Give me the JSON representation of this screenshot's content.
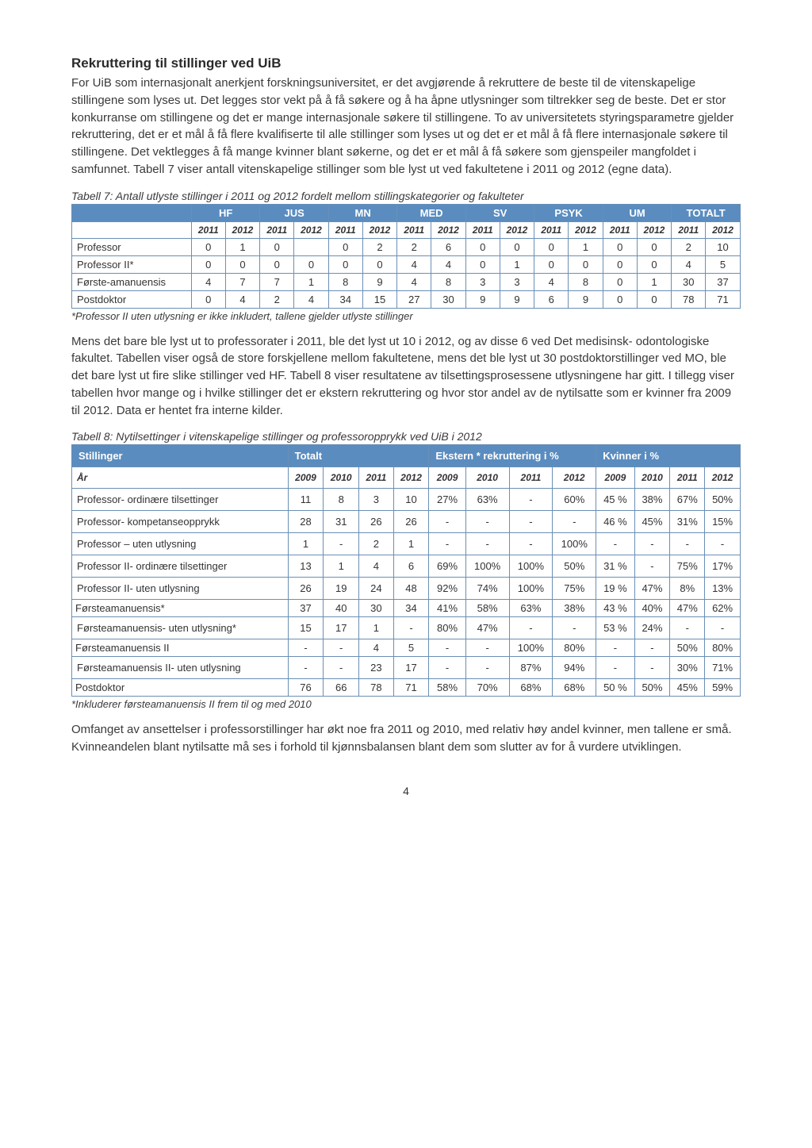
{
  "heading": "Rekruttering til stillinger ved UiB",
  "para1": "For UiB som internasjonalt anerkjent forskningsuniversitet, er det avgjørende å rekruttere de beste til de vitenskapelige stillingene som lyses ut. Det legges stor vekt på å få søkere og å ha åpne utlysninger som tiltrekker seg de beste. Det er stor konkurranse om stillingene og det er mange internasjonale søkere til stillingene. To av universitetets styringsparametre gjelder rekruttering, det er et mål å få flere kvalifiserte til alle stillinger som lyses ut og det er et mål å få flere internasjonale søkere til stillingene. Det vektlegges å få mange kvinner blant søkerne, og det er et mål å få søkere som gjenspeiler mangfoldet i samfunnet. Tabell 7 viser antall vitenskapelige stillinger som ble lyst ut ved fakultetene i 2011 og 2012 (egne data).",
  "table7": {
    "caption": "Tabell 7: Antall utlyste stillinger i 2011 og 2012 fordelt mellom stillingskategorier og fakulteter",
    "groups": [
      "",
      "HF",
      "JUS",
      "MN",
      "MED",
      "SV",
      "PSYK",
      "UM",
      "TOTALT"
    ],
    "years": [
      "2011",
      "2012",
      "2011",
      "2012",
      "2011",
      "2012",
      "2011",
      "2012",
      "2011",
      "2012",
      "2011",
      "2012",
      "2011",
      "2012",
      "2011",
      "2012"
    ],
    "rows": [
      {
        "label": "Professor",
        "vals": [
          "0",
          "1",
          "0",
          "",
          "0",
          "2",
          "2",
          "6",
          "0",
          "0",
          "0",
          "1",
          "0",
          "0",
          "2",
          "10"
        ]
      },
      {
        "label": "Professor II*",
        "vals": [
          "0",
          "0",
          "0",
          "0",
          "0",
          "0",
          "4",
          "4",
          "0",
          "1",
          "0",
          "0",
          "0",
          "0",
          "4",
          "5"
        ]
      },
      {
        "label": "Første-amanuensis",
        "vals": [
          "4",
          "7",
          "7",
          "1",
          "8",
          "9",
          "4",
          "8",
          "3",
          "3",
          "4",
          "8",
          "0",
          "1",
          "30",
          "37"
        ]
      },
      {
        "label": "Postdoktor",
        "vals": [
          "0",
          "4",
          "2",
          "4",
          "34",
          "15",
          "27",
          "30",
          "9",
          "9",
          "6",
          "9",
          "0",
          "0",
          "78",
          "71"
        ]
      }
    ],
    "footnote": "*Professor II uten utlysning er ikke inkludert, tallene gjelder utlyste stillinger"
  },
  "para2": "Mens det bare ble lyst ut to professorater i 2011, ble det lyst ut 10 i 2012, og av disse 6 ved Det medisinsk- odontologiske fakultet. Tabellen viser også de store forskjellene mellom fakultetene, mens det ble lyst ut 30 postdoktorstillinger ved MO, ble det bare lyst ut fire slike stillinger ved HF. Tabell 8 viser resultatene av tilsettingsprosessene utlysningene har gitt. I tillegg viser tabellen hvor mange og i hvilke stillinger det er ekstern rekruttering og hvor stor andel av de nytilsatte som er kvinner fra 2009 til 2012. Data er hentet fra interne kilder.",
  "table8": {
    "caption": "Tabell 8: Nytilsettinger i vitenskapelige stillinger og professoropprykk ved UiB i 2012",
    "group_headers": [
      "Stillinger",
      "Totalt",
      "Ekstern * rekruttering i %",
      "Kvinner i %"
    ],
    "years_label": "År",
    "years": [
      "2009",
      "2010",
      "2011",
      "2012",
      "2009",
      "2010",
      "2011",
      "2012",
      "2009",
      "2010",
      "2011",
      "2012"
    ],
    "rows": [
      {
        "label": "Professor- ordinære tilsettinger",
        "vals": [
          "11",
          "8",
          "3",
          "10",
          "27%",
          "63%",
          "-",
          "60%",
          "45 %",
          "38%",
          "67%",
          "50%"
        ]
      },
      {
        "label": "Professor- kompetanseopprykk",
        "vals": [
          "28",
          "31",
          "26",
          "26",
          "-",
          "-",
          "-",
          "-",
          "46 %",
          "45%",
          "31%",
          "15%"
        ]
      },
      {
        "label": "Professor – uten utlysning",
        "vals": [
          "1",
          "-",
          "2",
          "1",
          "-",
          "-",
          "-",
          "100%",
          "-",
          "-",
          "-",
          "-"
        ]
      },
      {
        "label": "Professor II- ordinære tilsettinger",
        "vals": [
          "13",
          "1",
          "4",
          "6",
          "69%",
          "100%",
          "100%",
          "50%",
          "31 %",
          "-",
          "75%",
          "17%"
        ]
      },
      {
        "label": "Professor II- uten utlysning",
        "vals": [
          "26",
          "19",
          "24",
          "48",
          "92%",
          "74%",
          "100%",
          "75%",
          "19 %",
          "47%",
          "8%",
          "13%"
        ]
      },
      {
        "label": "Førsteamanuensis*",
        "vals": [
          "37",
          "40",
          "30",
          "34",
          "41%",
          "58%",
          "63%",
          "38%",
          "43 %",
          "40%",
          "47%",
          "62%"
        ],
        "tight": true
      },
      {
        "label": "Førsteamanuensis- uten utlysning*",
        "vals": [
          "15",
          "17",
          "1",
          "-",
          "80%",
          "47%",
          "-",
          "-",
          "53 %",
          "24%",
          "-",
          "-"
        ]
      },
      {
        "label": "Førsteamanuensis II",
        "vals": [
          "-",
          "-",
          "4",
          "5",
          "-",
          "-",
          "100%",
          "80%",
          "-",
          "-",
          "50%",
          "80%"
        ],
        "tight": true
      },
      {
        "label": "Førsteamanuensis II- uten utlysning",
        "vals": [
          "-",
          "-",
          "23",
          "17",
          "-",
          "-",
          "87%",
          "94%",
          "-",
          "-",
          "30%",
          "71%"
        ]
      },
      {
        "label": "Postdoktor",
        "vals": [
          "76",
          "66",
          "78",
          "71",
          "58%",
          "70%",
          "68%",
          "68%",
          "50 %",
          "50%",
          "45%",
          "59%"
        ],
        "tight": true
      }
    ],
    "footnote": "*Inkluderer førsteamanuensis II frem til og med 2010"
  },
  "para3": "Omfanget av ansettelser i professorstillinger har økt noe fra 2011 og 2010, med relativ høy andel kvinner, men tallene er små. Kvinneandelen blant nytilsatte må ses i forhold til kjønnsbalansen blant dem som slutter av for å vurdere utviklingen.",
  "page_number": "4"
}
